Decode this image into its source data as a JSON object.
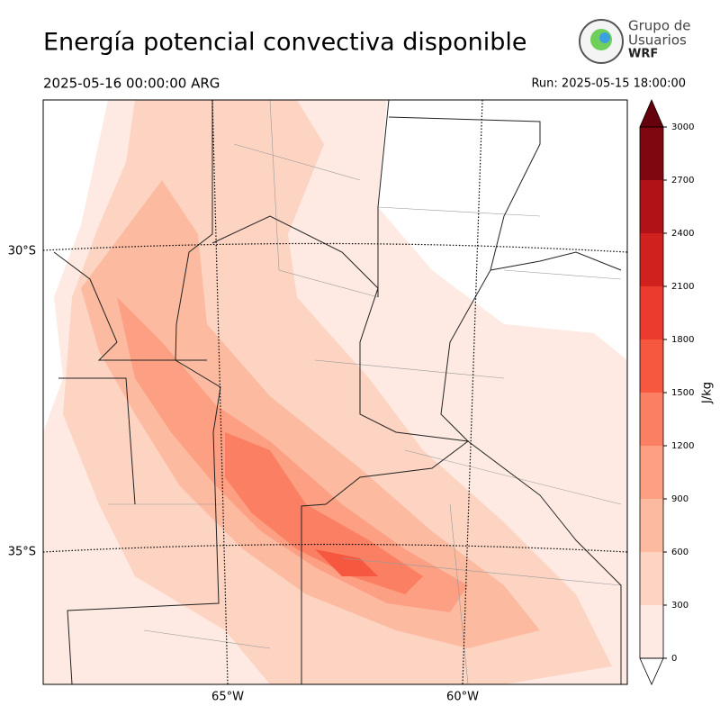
{
  "header": {
    "title": "Energía potencial convectiva disponible",
    "valid_time": "2025-05-16 00:00:00 ARG",
    "run": "Run: 2025-05-15 18:00:00",
    "logo": [
      "Grupo de",
      "Usuarios",
      "WRF"
    ]
  },
  "map": {
    "lat_labels": [
      "30°S",
      "35°S"
    ],
    "lon_labels": [
      "65°W",
      "60°W"
    ]
  },
  "colorbar": {
    "label": "J/kg",
    "ticks": [
      0,
      300,
      600,
      900,
      1200,
      1500,
      1800,
      2100,
      2400,
      2700,
      3000
    ],
    "colors": [
      "#feeae2",
      "#fdd4c2",
      "#fcbba1",
      "#fc9f82",
      "#fb7f62",
      "#f6583f",
      "#ea3b2e",
      "#d0211f",
      "#b01217",
      "#7f0710"
    ],
    "over_color": "#67000d",
    "under_color": "#ffffff"
  }
}
